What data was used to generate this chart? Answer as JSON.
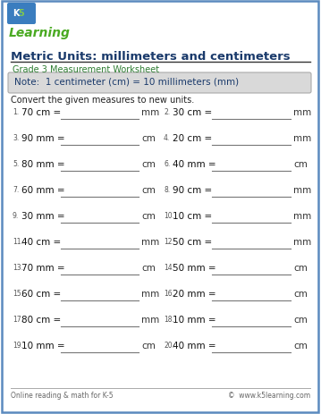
{
  "title": "Metric Units: millimeters and centimeters",
  "subtitle": "Grade 3 Measurement Worksheet",
  "note": "Note:  1 centimeter (cm) = 10 millimeters (mm)",
  "instruction": "Convert the given measures to new units.",
  "footer_left": "Online reading & math for K-5",
  "footer_right": "©  www.k5learning.com",
  "title_color": "#1a3a6b",
  "subtitle_color": "#2e7d32",
  "note_color": "#1a3a6b",
  "note_bg": "#d9d9d9",
  "problems": [
    {
      "num": "1.",
      "question": "70 cm =",
      "unit": "mm"
    },
    {
      "num": "2.",
      "question": "30 cm =",
      "unit": "mm"
    },
    {
      "num": "3.",
      "question": "90 mm =",
      "unit": "cm"
    },
    {
      "num": "4.",
      "question": "20 cm =",
      "unit": "mm"
    },
    {
      "num": "5.",
      "question": "80 mm =",
      "unit": "cm"
    },
    {
      "num": "6.",
      "question": "40 mm =",
      "unit": "cm"
    },
    {
      "num": "7.",
      "question": "60 mm =",
      "unit": "cm"
    },
    {
      "num": "8.",
      "question": "90 cm =",
      "unit": "mm"
    },
    {
      "num": "9.",
      "question": "30 mm =",
      "unit": "cm"
    },
    {
      "num": "10.",
      "question": "10 cm =",
      "unit": "mm"
    },
    {
      "num": "11.",
      "question": "40 cm =",
      "unit": "mm"
    },
    {
      "num": "12.",
      "question": "50 cm =",
      "unit": "mm"
    },
    {
      "num": "13.",
      "question": "70 mm =",
      "unit": "cm"
    },
    {
      "num": "14.",
      "question": "50 mm =",
      "unit": "cm"
    },
    {
      "num": "15.",
      "question": "60 cm =",
      "unit": "mm"
    },
    {
      "num": "16.",
      "question": "20 mm =",
      "unit": "cm"
    },
    {
      "num": "17.",
      "question": "80 cm =",
      "unit": "mm"
    },
    {
      "num": "18.",
      "question": "10 mm =",
      "unit": "cm"
    },
    {
      "num": "19.",
      "question": "10 mm =",
      "unit": "cm"
    },
    {
      "num": "20.",
      "question": "40 mm =",
      "unit": "cm"
    }
  ],
  "bg_color": "#ffffff",
  "page_border_color": "#5b8abf"
}
